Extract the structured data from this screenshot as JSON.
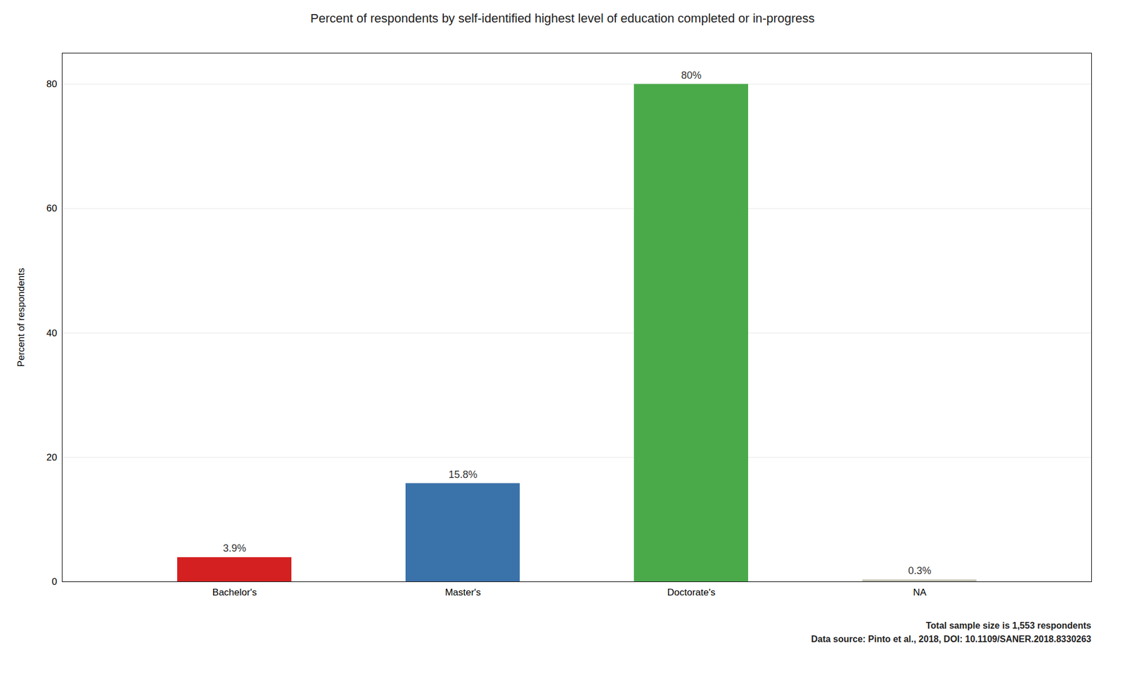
{
  "chart_data": {
    "type": "bar",
    "title": "Percent of respondents by self-identified highest level of education completed or in-progress",
    "ylabel": "Percent of respondents",
    "categories": [
      "Bachelor's",
      "Master's",
      "Doctorate's",
      "NA"
    ],
    "values": [
      3.9,
      15.8,
      80.0,
      0.3
    ],
    "value_labels": [
      "3.9%",
      "15.8%",
      "80%",
      "0.3%"
    ],
    "data_labels": true,
    "colors": [
      "#d42020",
      "#3a72aa",
      "#4aaa4a",
      "#c0c0b0"
    ],
    "ylim": [
      0,
      85
    ],
    "yticks": [
      0,
      20,
      40,
      60,
      80
    ],
    "grid": true,
    "annotations": [
      "Total sample size is 1,553 respondents",
      "Data source: Pinto et al., 2018, DOI: 10.1109/SANER.2018.8330263"
    ]
  }
}
